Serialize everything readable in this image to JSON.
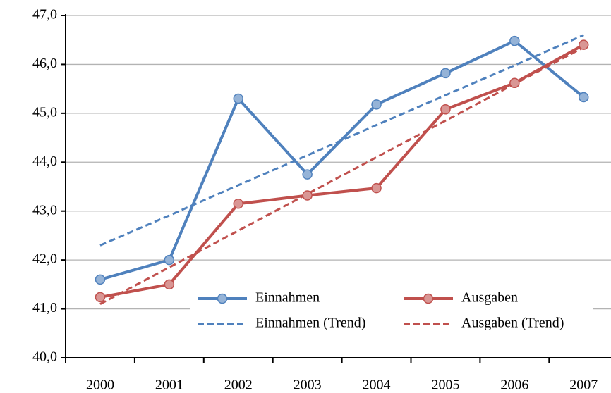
{
  "chart_data": {
    "type": "line",
    "categories": [
      "2000",
      "2001",
      "2002",
      "2003",
      "2004",
      "2005",
      "2006",
      "2007"
    ],
    "series": [
      {
        "name": "Einnahmen",
        "color": "#4f81bd",
        "marker_fill": "#95b3d7",
        "dashed": false,
        "values": [
          41.6,
          42.0,
          45.3,
          43.75,
          45.18,
          45.82,
          46.48,
          45.33
        ]
      },
      {
        "name": "Ausgaben",
        "color": "#c0504d",
        "marker_fill": "#d99694",
        "dashed": false,
        "values": [
          41.24,
          41.5,
          43.15,
          43.32,
          43.47,
          45.08,
          45.62,
          46.4
        ]
      },
      {
        "name": "Einnahmen (Trend)",
        "color": "#4f81bd",
        "dashed": true,
        "values": [
          42.3,
          42.91,
          43.53,
          44.14,
          44.76,
          45.37,
          45.98,
          46.6
        ]
      },
      {
        "name": "Ausgaben (Trend)",
        "color": "#c0504d",
        "dashed": true,
        "values": [
          41.1,
          41.85,
          42.6,
          43.35,
          44.1,
          44.85,
          45.6,
          46.35
        ]
      }
    ],
    "ylim": [
      40,
      47
    ],
    "yticks": [
      {
        "value": 40,
        "label": "40,0"
      },
      {
        "value": 41,
        "label": "41,0"
      },
      {
        "value": 42,
        "label": "42,0"
      },
      {
        "value": 43,
        "label": "43,0"
      },
      {
        "value": 44,
        "label": "44,0"
      },
      {
        "value": 45,
        "label": "45,0"
      },
      {
        "value": 46,
        "label": "46,0"
      },
      {
        "value": 47,
        "label": "47,0"
      }
    ],
    "grid": true,
    "legend": "bottom-right"
  }
}
